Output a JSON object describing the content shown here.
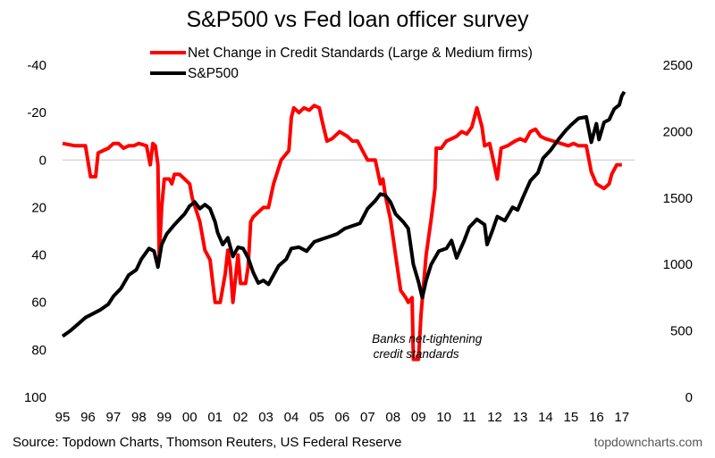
{
  "chart_data": {
    "type": "line",
    "title": "S&P500 vs Fed loan officer survey",
    "series": [
      {
        "name": "Net Change in Credit Standards (Large & Medium firms)",
        "axis": "left",
        "color": "#ff0000",
        "points": [
          [
            1995.0,
            -7
          ],
          [
            1995.5,
            -6
          ],
          [
            1995.9,
            -6
          ],
          [
            1996.1,
            7
          ],
          [
            1996.3,
            7
          ],
          [
            1996.4,
            -3
          ],
          [
            1996.8,
            -5
          ],
          [
            1997.0,
            -7
          ],
          [
            1997.2,
            -7
          ],
          [
            1997.4,
            -5
          ],
          [
            1997.6,
            -6
          ],
          [
            1997.8,
            -6
          ],
          [
            1998.0,
            -7
          ],
          [
            1998.3,
            -6
          ],
          [
            1998.45,
            2
          ],
          [
            1998.55,
            -7
          ],
          [
            1998.65,
            -6
          ],
          [
            1998.75,
            2
          ],
          [
            1998.8,
            41
          ],
          [
            1998.9,
            20
          ],
          [
            1999.0,
            8
          ],
          [
            1999.2,
            8
          ],
          [
            1999.3,
            10
          ],
          [
            1999.4,
            6
          ],
          [
            1999.6,
            6
          ],
          [
            1999.8,
            8
          ],
          [
            2000.0,
            10
          ],
          [
            2000.1,
            16
          ],
          [
            2000.4,
            26
          ],
          [
            2000.6,
            38
          ],
          [
            2000.8,
            42
          ],
          [
            2001.0,
            60
          ],
          [
            2001.2,
            60
          ],
          [
            2001.4,
            48
          ],
          [
            2001.5,
            38
          ],
          [
            2001.6,
            45
          ],
          [
            2001.7,
            60
          ],
          [
            2001.9,
            40
          ],
          [
            2002.0,
            52
          ],
          [
            2002.2,
            52
          ],
          [
            2002.3,
            45
          ],
          [
            2002.4,
            26
          ],
          [
            2002.5,
            24
          ],
          [
            2002.7,
            22
          ],
          [
            2002.9,
            20
          ],
          [
            2003.1,
            20
          ],
          [
            2003.3,
            10
          ],
          [
            2003.6,
            0
          ],
          [
            2003.9,
            -4
          ],
          [
            2004.0,
            -18
          ],
          [
            2004.1,
            -22
          ],
          [
            2004.3,
            -20
          ],
          [
            2004.5,
            -22
          ],
          [
            2004.7,
            -21
          ],
          [
            2004.9,
            -23
          ],
          [
            2005.1,
            -22
          ],
          [
            2005.2,
            -17
          ],
          [
            2005.4,
            -8
          ],
          [
            2005.6,
            -9
          ],
          [
            2005.9,
            -12
          ],
          [
            2006.2,
            -10
          ],
          [
            2006.4,
            -8
          ],
          [
            2006.6,
            -8
          ],
          [
            2006.8,
            -4
          ],
          [
            2007.0,
            0
          ],
          [
            2007.3,
            0
          ],
          [
            2007.5,
            10
          ],
          [
            2007.6,
            8
          ],
          [
            2007.7,
            15
          ],
          [
            2007.9,
            25
          ],
          [
            2008.1,
            40
          ],
          [
            2008.3,
            55
          ],
          [
            2008.5,
            58
          ],
          [
            2008.6,
            60
          ],
          [
            2008.75,
            58
          ],
          [
            2008.8,
            84
          ],
          [
            2009.0,
            84
          ],
          [
            2009.1,
            65
          ],
          [
            2009.3,
            40
          ],
          [
            2009.5,
            25
          ],
          [
            2009.65,
            12
          ],
          [
            2009.7,
            -5
          ],
          [
            2009.9,
            -5
          ],
          [
            2010.1,
            -8
          ],
          [
            2010.3,
            -9
          ],
          [
            2010.5,
            -10
          ],
          [
            2010.7,
            -12
          ],
          [
            2010.9,
            -11
          ],
          [
            2011.1,
            -14
          ],
          [
            2011.3,
            -22
          ],
          [
            2011.5,
            -14
          ],
          [
            2011.6,
            -6
          ],
          [
            2011.8,
            -7
          ],
          [
            2012.0,
            3
          ],
          [
            2012.1,
            8
          ],
          [
            2012.25,
            -5
          ],
          [
            2012.5,
            -6
          ],
          [
            2012.8,
            -8
          ],
          [
            2013.0,
            -9
          ],
          [
            2013.2,
            -8
          ],
          [
            2013.4,
            -12
          ],
          [
            2013.6,
            -13
          ],
          [
            2013.8,
            -10
          ],
          [
            2014.0,
            -9
          ],
          [
            2014.3,
            -8
          ],
          [
            2014.6,
            -7
          ],
          [
            2014.9,
            -6
          ],
          [
            2015.1,
            -7
          ],
          [
            2015.3,
            -6
          ],
          [
            2015.6,
            -6
          ],
          [
            2015.8,
            5
          ],
          [
            2016.0,
            10
          ],
          [
            2016.3,
            12
          ],
          [
            2016.5,
            10
          ],
          [
            2016.6,
            6
          ],
          [
            2016.8,
            2
          ],
          [
            2017.0,
            2
          ]
        ]
      },
      {
        "name": "S&P500",
        "axis": "right",
        "color": "#000000",
        "points": [
          [
            1995.0,
            460
          ],
          [
            1995.3,
            500
          ],
          [
            1995.6,
            550
          ],
          [
            1995.9,
            600
          ],
          [
            1996.2,
            630
          ],
          [
            1996.5,
            660
          ],
          [
            1996.8,
            700
          ],
          [
            1997.0,
            760
          ],
          [
            1997.3,
            820
          ],
          [
            1997.6,
            920
          ],
          [
            1997.9,
            960
          ],
          [
            1998.1,
            1040
          ],
          [
            1998.4,
            1120
          ],
          [
            1998.6,
            1100
          ],
          [
            1998.75,
            980
          ],
          [
            1998.9,
            1150
          ],
          [
            1999.1,
            1230
          ],
          [
            1999.4,
            1300
          ],
          [
            1999.6,
            1340
          ],
          [
            1999.8,
            1380
          ],
          [
            2000.0,
            1440
          ],
          [
            2000.2,
            1470
          ],
          [
            2000.4,
            1420
          ],
          [
            2000.6,
            1450
          ],
          [
            2000.8,
            1420
          ],
          [
            2001.0,
            1320
          ],
          [
            2001.1,
            1240
          ],
          [
            2001.3,
            1150
          ],
          [
            2001.5,
            1200
          ],
          [
            2001.7,
            1060
          ],
          [
            2001.9,
            1130
          ],
          [
            2002.1,
            1120
          ],
          [
            2002.3,
            1050
          ],
          [
            2002.5,
            940
          ],
          [
            2002.7,
            860
          ],
          [
            2002.9,
            880
          ],
          [
            2003.1,
            850
          ],
          [
            2003.3,
            920
          ],
          [
            2003.5,
            990
          ],
          [
            2003.8,
            1040
          ],
          [
            2004.0,
            1120
          ],
          [
            2004.3,
            1130
          ],
          [
            2004.6,
            1100
          ],
          [
            2004.9,
            1170
          ],
          [
            2005.2,
            1190
          ],
          [
            2005.5,
            1210
          ],
          [
            2005.8,
            1230
          ],
          [
            2006.1,
            1270
          ],
          [
            2006.4,
            1290
          ],
          [
            2006.7,
            1310
          ],
          [
            2007.0,
            1420
          ],
          [
            2007.3,
            1480
          ],
          [
            2007.5,
            1530
          ],
          [
            2007.7,
            1520
          ],
          [
            2007.9,
            1470
          ],
          [
            2008.1,
            1380
          ],
          [
            2008.4,
            1320
          ],
          [
            2008.6,
            1270
          ],
          [
            2008.8,
            1000
          ],
          [
            2009.0,
            870
          ],
          [
            2009.15,
            750
          ],
          [
            2009.3,
            880
          ],
          [
            2009.5,
            1000
          ],
          [
            2009.8,
            1100
          ],
          [
            2010.1,
            1120
          ],
          [
            2010.3,
            1180
          ],
          [
            2010.5,
            1050
          ],
          [
            2010.8,
            1180
          ],
          [
            2011.0,
            1280
          ],
          [
            2011.3,
            1340
          ],
          [
            2011.6,
            1300
          ],
          [
            2011.7,
            1150
          ],
          [
            2011.9,
            1250
          ],
          [
            2012.1,
            1360
          ],
          [
            2012.4,
            1330
          ],
          [
            2012.7,
            1430
          ],
          [
            2012.9,
            1410
          ],
          [
            2013.1,
            1500
          ],
          [
            2013.4,
            1630
          ],
          [
            2013.7,
            1690
          ],
          [
            2013.9,
            1800
          ],
          [
            2014.2,
            1860
          ],
          [
            2014.5,
            1940
          ],
          [
            2014.8,
            2010
          ],
          [
            2015.0,
            2050
          ],
          [
            2015.3,
            2100
          ],
          [
            2015.6,
            2110
          ],
          [
            2015.8,
            1920
          ],
          [
            2016.0,
            2060
          ],
          [
            2016.1,
            1940
          ],
          [
            2016.3,
            2070
          ],
          [
            2016.5,
            2090
          ],
          [
            2016.7,
            2170
          ],
          [
            2016.9,
            2200
          ],
          [
            2017.0,
            2270
          ],
          [
            2017.1,
            2300
          ]
        ]
      }
    ],
    "left_axis": {
      "ylim": [
        100,
        -40
      ],
      "ticks": [
        "-40",
        "-20",
        "0",
        "20",
        "40",
        "60",
        "80",
        "100"
      ],
      "tick_values": [
        -40,
        -20,
        0,
        20,
        40,
        60,
        80,
        100
      ],
      "zero_line": true
    },
    "right_axis": {
      "ylim": [
        0,
        2500
      ],
      "ticks": [
        "2500",
        "2000",
        "1500",
        "1000",
        "500",
        "0"
      ],
      "tick_values": [
        2500,
        2000,
        1500,
        1000,
        500,
        0
      ]
    },
    "x_axis": {
      "xlim": [
        1995,
        2017.5
      ],
      "tick_values": [
        1995,
        1996,
        1997,
        1998,
        1999,
        2000,
        2001,
        2002,
        2003,
        2004,
        2005,
        2006,
        2007,
        2008,
        2009,
        2010,
        2011,
        2012,
        2013,
        2014,
        2015,
        2016,
        2017
      ],
      "ticks": [
        "95",
        "96",
        "97",
        "98",
        "99",
        "00",
        "01",
        "02",
        "03",
        "04",
        "05",
        "06",
        "07",
        "08",
        "09",
        "10",
        "11",
        "12",
        "13",
        "14",
        "15",
        "16",
        "17"
      ]
    },
    "annotation": {
      "lines": [
        "Banks net-tightening",
        "credit standards"
      ],
      "x": 2009.4,
      "y": 77
    },
    "legend": {
      "placement": "top-center"
    },
    "source": "Source: Topdown Charts, Thomson Reuters, US Federal Reserve",
    "brand": "topdowncharts.com"
  }
}
